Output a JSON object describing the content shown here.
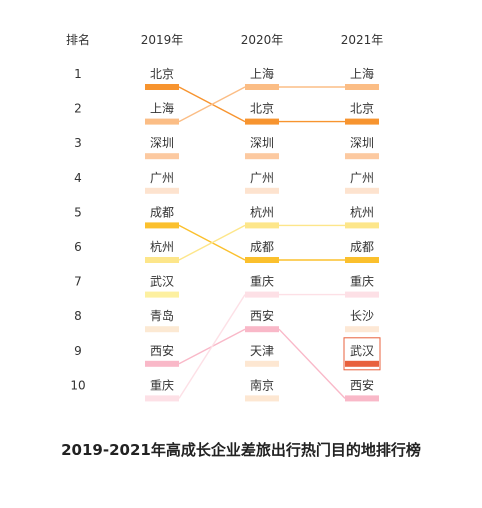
{
  "chart_data": {
    "type": "table",
    "title": "2019-2021年高成长企业差旅出行热门目的地排行榜",
    "rank_header": "排名",
    "years": [
      "2019年",
      "2020年",
      "2021年"
    ],
    "ranks": [
      1,
      2,
      3,
      4,
      5,
      6,
      7,
      8,
      9,
      10
    ],
    "series": [
      {
        "name": "2019年",
        "values": [
          "北京",
          "上海",
          "深圳",
          "广州",
          "成都",
          "杭州",
          "武汉",
          "青岛",
          "西安",
          "重庆"
        ]
      },
      {
        "name": "2020年",
        "values": [
          "上海",
          "北京",
          "深圳",
          "广州",
          "杭州",
          "成都",
          "重庆",
          "西安",
          "天津",
          "南京"
        ]
      },
      {
        "name": "2021年",
        "values": [
          "上海",
          "北京",
          "深圳",
          "广州",
          "杭州",
          "成都",
          "重庆",
          "长沙",
          "武汉",
          "西安"
        ]
      }
    ],
    "highlight": {
      "year_index": 2,
      "rank": 9
    },
    "colors": {
      "北京": "#f7942f",
      "上海": "#fbbd85",
      "深圳": "#fcc9a0",
      "广州": "#fde3cf",
      "成都": "#fbc02d",
      "杭州": "#fde68a",
      "武汉": "#fdf0a0",
      "青岛": "#fce9d3",
      "西安": "#f9b8c8",
      "重庆": "#fde0e6",
      "天津": "#fde7d2",
      "南京": "#fde7d2",
      "长沙": "#fde8d5",
      "highlight_box": "#e8603c"
    },
    "tracked_flows": [
      "北京",
      "上海",
      "成都",
      "杭州",
      "西安",
      "重庆"
    ]
  }
}
